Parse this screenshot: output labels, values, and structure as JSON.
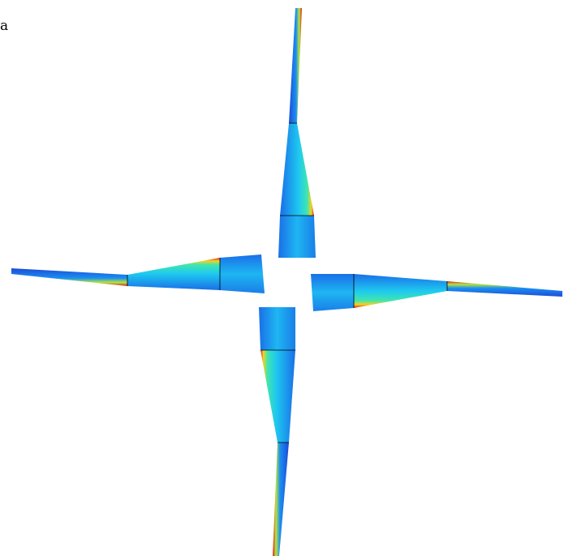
{
  "figure": {
    "panel_label": "a",
    "arm_count": 4,
    "segments_per_arm": 3,
    "colormap": [
      "#1e4bd6",
      "#1a8ff2",
      "#1ec8f0",
      "#3fe6b0",
      "#b8e63a",
      "#f5d21e",
      "#f07a14",
      "#d91e1e"
    ],
    "outline_color": "#000000"
  }
}
